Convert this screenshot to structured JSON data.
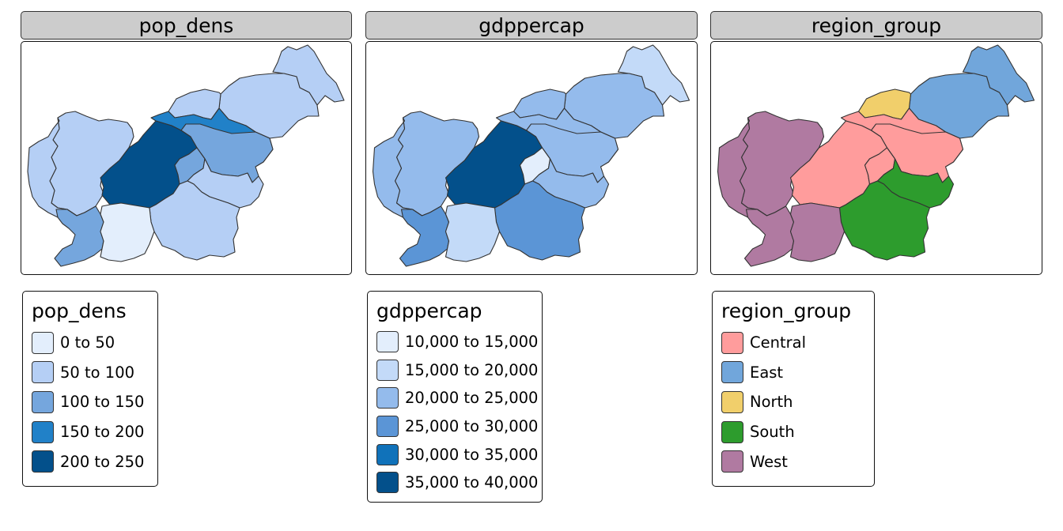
{
  "facets": [
    {
      "title": "pop_dens",
      "legend": {
        "title": "pop_dens",
        "items": [
          {
            "label": "0 to 50",
            "color": "#e3eefc"
          },
          {
            "label": "50 to 100",
            "color": "#b5cff5"
          },
          {
            "label": "100 to 150",
            "color": "#75a6dd"
          },
          {
            "label": "150 to 200",
            "color": "#2181c8"
          },
          {
            "label": "200 to 250",
            "color": "#03508b"
          }
        ]
      },
      "region_colors": [
        "#b5cff5",
        "#b5cff5",
        "#b5cff5",
        "#2181c8",
        "#b5cff5",
        "#75a6dd",
        "#b5cff5",
        "#03508b",
        "#75a6dd",
        "#b5cff5",
        "#b5cff5",
        "#75a6dd",
        "#e3eefc"
      ]
    },
    {
      "title": "gdppercap",
      "legend": {
        "title": "gdppercap",
        "items": [
          {
            "label": "10,000 to 15,000",
            "color": "#e3eefc"
          },
          {
            "label": "15,000 to 20,000",
            "color": "#c3daf8"
          },
          {
            "label": "20,000 to 25,000",
            "color": "#94bbec"
          },
          {
            "label": "25,000 to 30,000",
            "color": "#5b95d6"
          },
          {
            "label": "30,000 to 35,000",
            "color": "#1072ba"
          },
          {
            "label": "35,000 to 40,000",
            "color": "#03508b"
          }
        ]
      },
      "region_colors": [
        "#c3daf8",
        "#94bbec",
        "#94bbec",
        "#94bbec",
        "#94bbec",
        "#94bbec",
        "#94bbec",
        "#03508b",
        "#e3eefc",
        "#94bbec",
        "#5b95d6",
        "#5b95d6",
        "#c3daf8"
      ]
    },
    {
      "title": "region_group",
      "legend": {
        "title": "region_group",
        "items": [
          {
            "label": "Central",
            "color": "#ff9c9c"
          },
          {
            "label": "East",
            "color": "#71a6db"
          },
          {
            "label": "North",
            "color": "#f1cf6b"
          },
          {
            "label": "South",
            "color": "#2d9c2d"
          },
          {
            "label": "West",
            "color": "#b07aa1"
          }
        ]
      },
      "region_colors": [
        "#71a6db",
        "#71a6db",
        "#f1cf6b",
        "#ff9c9c",
        "#b07aa1",
        "#ff9c9c",
        "#b07aa1",
        "#ff9c9c",
        "#ff9c9c",
        "#2d9c2d",
        "#2d9c2d",
        "#b07aa1",
        "#b07aa1"
      ]
    }
  ]
}
